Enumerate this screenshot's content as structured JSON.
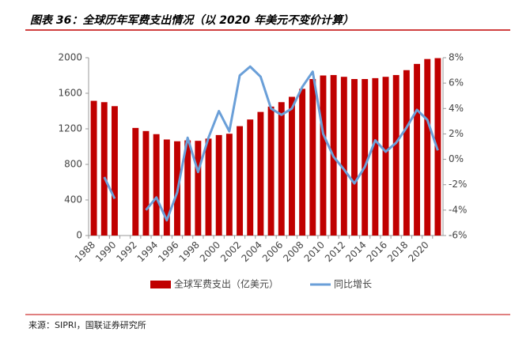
{
  "chart_data": {
    "type": "bar-line",
    "title": "图表 36：全球历年军费支出情况（以 2020 年美元不变价计算）",
    "source": "来源：SIPRI，国联证券研究所",
    "categories": [
      "1988",
      null,
      "1990",
      null,
      "1992",
      null,
      "1994",
      null,
      "1996",
      null,
      "1998",
      null,
      "2000",
      null,
      "2002",
      null,
      "2004",
      null,
      "2006",
      null,
      "2008",
      null,
      "2010",
      null,
      "2012",
      null,
      "2014",
      null,
      "2016",
      null,
      "2018",
      null,
      "2020",
      null
    ],
    "series": [
      {
        "name": "全球军费支出（亿美元）",
        "type": "bar",
        "color": "#c00000",
        "values": [
          1515,
          1500,
          1455,
          null,
          1210,
          1175,
          1140,
          1080,
          1060,
          1070,
          1065,
          1090,
          1130,
          1145,
          1230,
          1305,
          1390,
          1450,
          1500,
          1560,
          1650,
          1760,
          1800,
          1805,
          1785,
          1760,
          1760,
          1770,
          1785,
          1805,
          1860,
          1930,
          1985,
          1995
        ]
      },
      {
        "name": "同比增长",
        "type": "line",
        "axis": "y2",
        "color": "#6a9fd8",
        "values": [
          null,
          -1.4,
          -3.1,
          null,
          null,
          -4.0,
          -3.0,
          -4.8,
          -2.6,
          1.7,
          -1.0,
          1.7,
          3.8,
          2.2,
          6.6,
          7.3,
          6.5,
          4.0,
          3.5,
          4.0,
          5.7,
          6.9,
          2.0,
          0.2,
          -0.8,
          -1.9,
          -0.6,
          1.5,
          0.6,
          1.3,
          2.5,
          3.9,
          3.1,
          0.7
        ]
      }
    ],
    "ylim": [
      0,
      2000
    ],
    "yticks": [
      0,
      400,
      800,
      1200,
      1600,
      2000
    ],
    "y2lim": [
      -6,
      8
    ],
    "y2ticks": [
      {
        "value": -6,
        "label": "-6%"
      },
      {
        "value": -4,
        "label": "-4%"
      },
      {
        "value": -2,
        "label": "-2%"
      },
      {
        "value": 0,
        "label": "0%"
      },
      {
        "value": 2,
        "label": "2%"
      },
      {
        "value": 4,
        "label": "4%"
      },
      {
        "value": 6,
        "label": "6%"
      },
      {
        "value": 8,
        "label": "8%"
      }
    ],
    "legend": "bottom"
  }
}
